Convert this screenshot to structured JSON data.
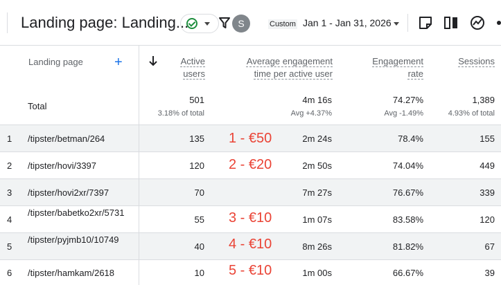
{
  "header": {
    "title": "Landing page: Landing...",
    "avatar_letter": "S",
    "custom_tag": "Custom",
    "date_range": "Jan 1 - Jan 31, 2026"
  },
  "table": {
    "columns": {
      "landing_page": "Landing page",
      "active_users": [
        "Active",
        "users"
      ],
      "avg_engagement": [
        "Average engagement",
        "time per active user"
      ],
      "engagement_rate": [
        "Engagement",
        "rate"
      ],
      "sessions": "Sessions"
    },
    "totals": {
      "label": "Total",
      "active_users": "501",
      "active_users_sub": "3.18% of total",
      "avg_engagement": "4m 16s",
      "avg_engagement_sub": "Avg +4.37%",
      "engagement_rate": "74.27%",
      "engagement_rate_sub": "Avg -1.49%",
      "sessions": "1,389",
      "sessions_sub": "4.93% of total"
    },
    "rows": [
      {
        "index": "1",
        "page": "/tipster/betman/264",
        "active_users": "135",
        "note": "1 - €50",
        "avg_engagement": "2m 24s",
        "engagement_rate": "78.4%",
        "sessions": "155"
      },
      {
        "index": "2",
        "page": "/tipster/hovi/3397",
        "active_users": "120",
        "note": "2 - €20",
        "avg_engagement": "2m 50s",
        "engagement_rate": "74.04%",
        "sessions": "449"
      },
      {
        "index": "3",
        "page": "/tipster/hovi2xr/7397",
        "active_users": "70",
        "note": "",
        "avg_engagement": "7m 27s",
        "engagement_rate": "76.67%",
        "sessions": "339"
      },
      {
        "index": "4",
        "page": "/tipster/babetko2xr/5731",
        "active_users": "55",
        "note": "3 - €10",
        "avg_engagement": "1m 07s",
        "engagement_rate": "83.58%",
        "sessions": "120"
      },
      {
        "index": "5",
        "page": "/tipster/pyjmb10/10749",
        "active_users": "40",
        "note": "4 - €10",
        "avg_engagement": "8m 26s",
        "engagement_rate": "81.82%",
        "sessions": "67"
      },
      {
        "index": "6",
        "page": "/tipster/hamkam/2618",
        "active_users": "10",
        "note": "5 - €10",
        "avg_engagement": "1m 00s",
        "engagement_rate": "66.67%",
        "sessions": "39"
      }
    ]
  },
  "icons": [
    "check-circle-icon",
    "chevron-down-icon",
    "filter-icon",
    "note-icon",
    "compare-icon",
    "insights-icon",
    "share-icon",
    "add-icon",
    "sort-down-icon"
  ],
  "colors": {
    "accent": "#1a73e8",
    "success": "#1e8e3e",
    "annotation": "#ea4335"
  }
}
